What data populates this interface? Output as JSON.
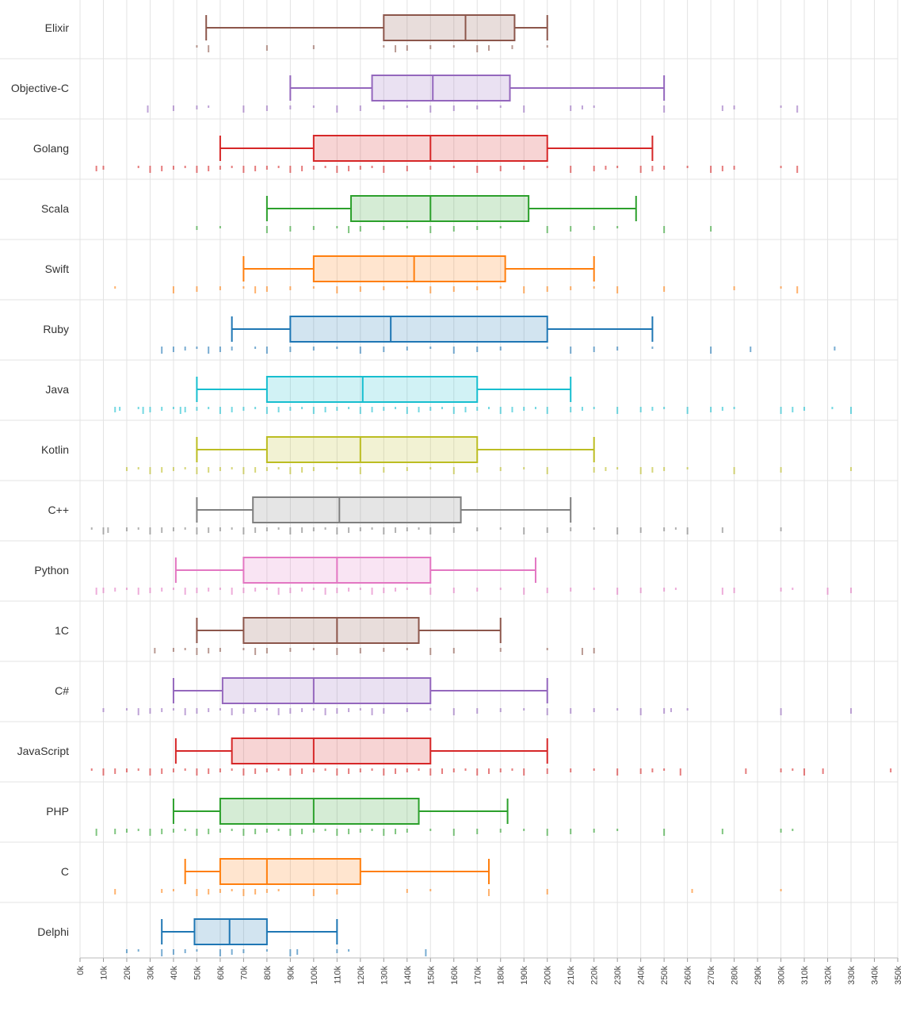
{
  "chart_data": {
    "type": "boxplot",
    "orientation": "horizontal",
    "title": "",
    "xlabel": "",
    "ylabel": "",
    "xlim": [
      0,
      350000
    ],
    "grid": true,
    "x_ticks": [
      "0k",
      "10k",
      "20k",
      "30k",
      "40k",
      "50k",
      "60k",
      "70k",
      "80k",
      "90k",
      "100k",
      "110k",
      "120k",
      "130k",
      "140k",
      "150k",
      "160k",
      "170k",
      "180k",
      "190k",
      "200k",
      "210k",
      "220k",
      "230k",
      "240k",
      "250k",
      "260k",
      "270k",
      "280k",
      "290k",
      "300k",
      "310k",
      "320k",
      "330k",
      "340k",
      "350k"
    ],
    "series": [
      {
        "label": "Elixir",
        "color": "#8c564b",
        "whisker_low": 54000,
        "q1": 130000,
        "median": 165000,
        "q3": 186000,
        "whisker_high": 200000,
        "points": [
          50000,
          55000,
          80000,
          100000,
          130000,
          135000,
          140000,
          150000,
          160000,
          170000,
          175000,
          185000,
          200000
        ]
      },
      {
        "label": "Objective-C",
        "color": "#9467bd",
        "whisker_low": 90000,
        "q1": 125000,
        "median": 151000,
        "q3": 184000,
        "whisker_high": 250000,
        "points": [
          29000,
          40000,
          50000,
          55000,
          70000,
          80000,
          90000,
          100000,
          110000,
          120000,
          130000,
          140000,
          150000,
          160000,
          170000,
          180000,
          190000,
          210000,
          215000,
          220000,
          250000,
          275000,
          280000,
          300000,
          307000
        ]
      },
      {
        "label": "Golang",
        "color": "#d62728",
        "whisker_low": 60000,
        "q1": 100000,
        "median": 150000,
        "q3": 200000,
        "whisker_high": 245000,
        "points": [
          7000,
          10000,
          25000,
          30000,
          35000,
          40000,
          45000,
          50000,
          55000,
          60000,
          65000,
          70000,
          75000,
          80000,
          85000,
          90000,
          95000,
          100000,
          105000,
          110000,
          115000,
          120000,
          125000,
          130000,
          140000,
          150000,
          160000,
          170000,
          180000,
          190000,
          200000,
          210000,
          220000,
          225000,
          230000,
          240000,
          245000,
          250000,
          260000,
          270000,
          275000,
          280000,
          300000,
          307000
        ]
      },
      {
        "label": "Scala",
        "color": "#2ca02c",
        "whisker_low": 80000,
        "q1": 116000,
        "median": 150000,
        "q3": 192000,
        "whisker_high": 238000,
        "points": [
          50000,
          60000,
          80000,
          90000,
          100000,
          110000,
          115000,
          120000,
          130000,
          140000,
          150000,
          160000,
          170000,
          180000,
          200000,
          210000,
          220000,
          230000,
          250000,
          270000
        ]
      },
      {
        "label": "Swift",
        "color": "#ff7f0e",
        "whisker_low": 70000,
        "q1": 100000,
        "median": 143000,
        "q3": 182000,
        "whisker_high": 220000,
        "points": [
          15000,
          40000,
          50000,
          60000,
          70000,
          75000,
          80000,
          90000,
          100000,
          110000,
          120000,
          130000,
          140000,
          150000,
          160000,
          170000,
          180000,
          190000,
          200000,
          210000,
          220000,
          230000,
          250000,
          280000,
          300000,
          307000
        ]
      },
      {
        "label": "Ruby",
        "color": "#1f77b4",
        "whisker_low": 65000,
        "q1": 90000,
        "median": 133000,
        "q3": 200000,
        "whisker_high": 245000,
        "points": [
          35000,
          40000,
          45000,
          50000,
          55000,
          60000,
          65000,
          75000,
          80000,
          90000,
          100000,
          110000,
          120000,
          130000,
          140000,
          150000,
          160000,
          170000,
          180000,
          200000,
          210000,
          220000,
          230000,
          245000,
          270000,
          287000,
          323000
        ]
      },
      {
        "label": "Java",
        "color": "#17becf",
        "whisker_low": 50000,
        "q1": 80000,
        "median": 121000,
        "q3": 170000,
        "whisker_high": 210000,
        "points": [
          15000,
          17000,
          25000,
          27000,
          30000,
          35000,
          40000,
          43000,
          45000,
          50000,
          55000,
          60000,
          65000,
          70000,
          75000,
          80000,
          85000,
          90000,
          95000,
          100000,
          105000,
          110000,
          115000,
          120000,
          125000,
          130000,
          135000,
          140000,
          145000,
          150000,
          155000,
          160000,
          165000,
          170000,
          175000,
          180000,
          185000,
          190000,
          195000,
          200000,
          210000,
          215000,
          220000,
          230000,
          240000,
          245000,
          250000,
          260000,
          270000,
          275000,
          280000,
          300000,
          305000,
          310000,
          322000,
          330000
        ]
      },
      {
        "label": "Kotlin",
        "color": "#bcbd22",
        "whisker_low": 50000,
        "q1": 80000,
        "median": 120000,
        "q3": 170000,
        "whisker_high": 220000,
        "points": [
          20000,
          25000,
          30000,
          35000,
          40000,
          45000,
          50000,
          55000,
          60000,
          65000,
          70000,
          75000,
          80000,
          85000,
          90000,
          95000,
          100000,
          110000,
          120000,
          130000,
          140000,
          150000,
          160000,
          170000,
          180000,
          190000,
          200000,
          220000,
          225000,
          230000,
          240000,
          245000,
          250000,
          260000,
          280000,
          300000,
          330000
        ]
      },
      {
        "label": "C++",
        "color": "#7f7f7f",
        "whisker_low": 50000,
        "q1": 74000,
        "median": 111000,
        "q3": 163000,
        "whisker_high": 210000,
        "points": [
          5000,
          10000,
          12000,
          20000,
          25000,
          30000,
          35000,
          40000,
          45000,
          50000,
          55000,
          60000,
          65000,
          70000,
          75000,
          80000,
          85000,
          90000,
          95000,
          100000,
          105000,
          110000,
          115000,
          120000,
          125000,
          130000,
          135000,
          140000,
          145000,
          150000,
          160000,
          170000,
          180000,
          190000,
          200000,
          210000,
          220000,
          230000,
          240000,
          250000,
          255000,
          260000,
          275000,
          300000
        ]
      },
      {
        "label": "Python",
        "color": "#e377c2",
        "whisker_low": 41000,
        "q1": 70000,
        "median": 110000,
        "q3": 150000,
        "whisker_high": 195000,
        "points": [
          7000,
          10000,
          15000,
          20000,
          25000,
          30000,
          35000,
          40000,
          45000,
          50000,
          55000,
          60000,
          65000,
          70000,
          75000,
          80000,
          85000,
          90000,
          95000,
          100000,
          105000,
          110000,
          115000,
          120000,
          125000,
          130000,
          135000,
          140000,
          150000,
          160000,
          170000,
          180000,
          190000,
          200000,
          210000,
          220000,
          230000,
          240000,
          250000,
          255000,
          275000,
          280000,
          300000,
          305000,
          320000,
          330000
        ]
      },
      {
        "label": "1C",
        "color": "#8c564b",
        "whisker_low": 50000,
        "q1": 70000,
        "median": 110000,
        "q3": 145000,
        "whisker_high": 180000,
        "points": [
          32000,
          40000,
          45000,
          50000,
          55000,
          60000,
          70000,
          75000,
          80000,
          90000,
          100000,
          110000,
          120000,
          130000,
          140000,
          150000,
          160000,
          180000,
          200000,
          215000,
          220000
        ]
      },
      {
        "label": "C#",
        "color": "#9467bd",
        "whisker_low": 40000,
        "q1": 61000,
        "median": 100000,
        "q3": 150000,
        "whisker_high": 200000,
        "points": [
          10000,
          20000,
          25000,
          30000,
          35000,
          40000,
          45000,
          50000,
          55000,
          60000,
          65000,
          70000,
          75000,
          80000,
          85000,
          90000,
          95000,
          100000,
          105000,
          110000,
          115000,
          120000,
          125000,
          130000,
          140000,
          150000,
          160000,
          170000,
          180000,
          190000,
          200000,
          210000,
          220000,
          230000,
          240000,
          250000,
          253000,
          260000,
          300000,
          330000
        ]
      },
      {
        "label": "JavaScript",
        "color": "#d62728",
        "whisker_low": 41000,
        "q1": 65000,
        "median": 100000,
        "q3": 150000,
        "whisker_high": 200000,
        "points": [
          5000,
          10000,
          15000,
          20000,
          25000,
          30000,
          35000,
          40000,
          45000,
          50000,
          55000,
          60000,
          65000,
          70000,
          75000,
          80000,
          85000,
          90000,
          95000,
          100000,
          105000,
          110000,
          115000,
          120000,
          125000,
          130000,
          135000,
          140000,
          145000,
          150000,
          155000,
          160000,
          165000,
          170000,
          175000,
          180000,
          185000,
          190000,
          200000,
          210000,
          220000,
          230000,
          240000,
          245000,
          250000,
          257000,
          285000,
          300000,
          305000,
          310000,
          318000,
          347000
        ]
      },
      {
        "label": "PHP",
        "color": "#2ca02c",
        "whisker_low": 40000,
        "q1": 60000,
        "median": 100000,
        "q3": 145000,
        "whisker_high": 183000,
        "points": [
          7000,
          15000,
          20000,
          25000,
          30000,
          35000,
          40000,
          45000,
          50000,
          55000,
          60000,
          65000,
          70000,
          75000,
          80000,
          85000,
          90000,
          95000,
          100000,
          105000,
          110000,
          115000,
          120000,
          125000,
          130000,
          135000,
          140000,
          150000,
          160000,
          170000,
          180000,
          190000,
          200000,
          210000,
          220000,
          230000,
          250000,
          275000,
          300000,
          305000
        ]
      },
      {
        "label": "C",
        "color": "#ff7f0e",
        "whisker_low": 45000,
        "q1": 60000,
        "median": 80000,
        "q3": 120000,
        "whisker_high": 175000,
        "points": [
          15000,
          35000,
          40000,
          50000,
          55000,
          60000,
          65000,
          70000,
          75000,
          80000,
          85000,
          100000,
          110000,
          140000,
          150000,
          175000,
          200000,
          262000,
          300000
        ]
      },
      {
        "label": "Delphi",
        "color": "#1f77b4",
        "whisker_low": 35000,
        "q1": 49000,
        "median": 64000,
        "q3": 80000,
        "whisker_high": 110000,
        "points": [
          20000,
          25000,
          35000,
          40000,
          45000,
          50000,
          60000,
          65000,
          70000,
          80000,
          90000,
          93000,
          110000,
          115000,
          148000
        ]
      }
    ]
  }
}
